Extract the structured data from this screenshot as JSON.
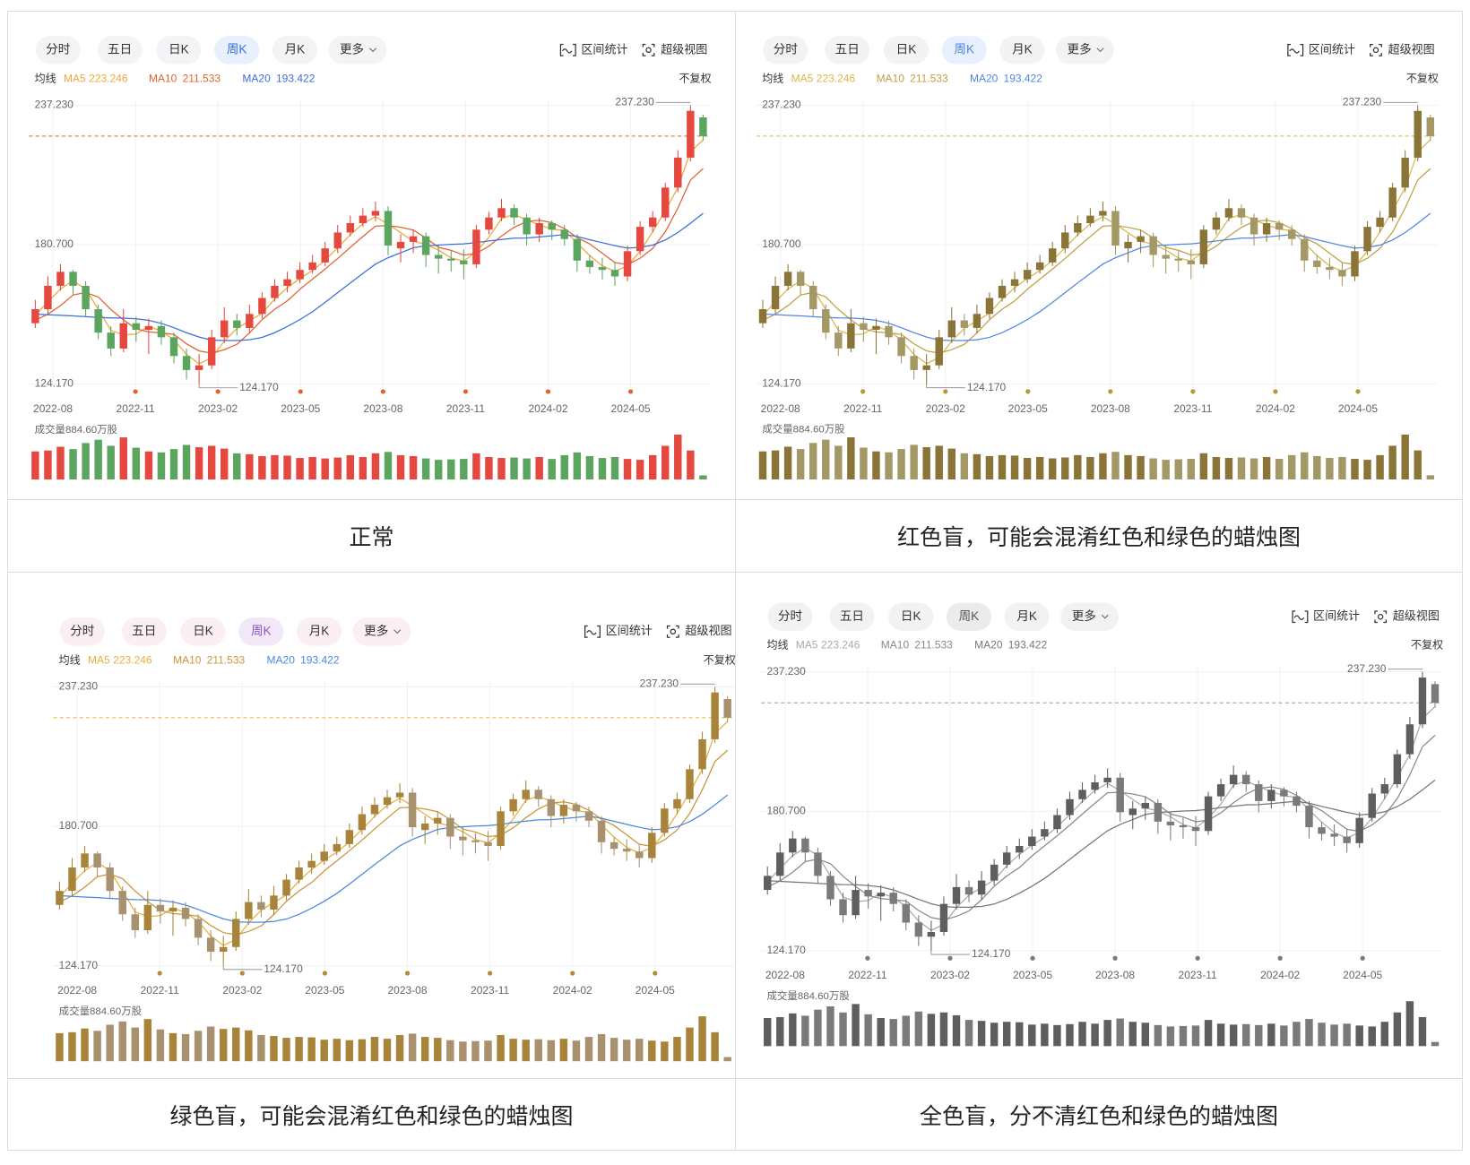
{
  "toolbar": {
    "tabs": [
      "分时",
      "五日",
      "日K",
      "周K",
      "月K",
      "更多"
    ],
    "active_tab": 3,
    "tools": [
      "区间统计",
      "超级视图"
    ]
  },
  "legend_title": "均线",
  "adjust": "不复权",
  "volume_label": "成交量884.60万股",
  "chart_data": {
    "type": "candlestick",
    "xlim": [
      -0.5,
      53.5
    ],
    "xticks": [
      {
        "value": 1.4,
        "label": "2022-08"
      },
      {
        "value": 7.95,
        "label": "2022-11"
      },
      {
        "value": 14.5,
        "label": "2023-02"
      },
      {
        "value": 21.05,
        "label": "2023-05"
      },
      {
        "value": 27.6,
        "label": "2023-08"
      },
      {
        "value": 34.15,
        "label": "2023-11"
      },
      {
        "value": 40.7,
        "label": "2024-02"
      },
      {
        "value": 47.25,
        "label": "2024-05"
      }
    ],
    "ylim": [
      124.17,
      237.23
    ],
    "yticks": [
      {
        "value": 237.23,
        "label": "237.230"
      },
      {
        "value": 180.7,
        "label": "180.700"
      },
      {
        "value": 124.17,
        "label": "124.170"
      }
    ],
    "grid": true,
    "open": [
      148.83,
      154.52,
      164.0,
      169.69,
      164.0,
      154.52,
      145.03,
      138.58,
      148.83,
      146.17,
      147.69,
      143.14,
      135.55,
      129.86,
      131.75,
      143.14,
      149.97,
      146.93,
      152.62,
      159.07,
      164.0,
      166.66,
      170.45,
      173.49,
      179.18,
      185.63,
      189.42,
      192.46,
      194.35,
      179.18,
      181.83,
      184.11,
      176.52,
      175.01,
      174.25,
      172.73,
      186.77,
      191.7,
      195.49,
      191.7,
      184.87,
      189.42,
      186.77,
      182.97,
      174.25,
      171.59,
      170.45,
      167.8,
      178.04,
      187.91,
      191.7,
      203.84,
      215.98,
      232.29
    ],
    "high": [
      158.31,
      167.8,
      172.73,
      170.45,
      165.9,
      156.41,
      147.69,
      154.52,
      151.48,
      150.72,
      149.97,
      145.03,
      138.58,
      136.31,
      146.17,
      155.28,
      152.62,
      156.41,
      161.35,
      166.66,
      169.69,
      173.49,
      176.52,
      181.83,
      188.66,
      192.46,
      195.49,
      198.15,
      196.25,
      184.87,
      186.77,
      185.63,
      180.32,
      178.04,
      178.8,
      188.66,
      193.98,
      199.29,
      197.01,
      193.22,
      191.7,
      190.56,
      188.66,
      184.87,
      176.52,
      175.38,
      173.49,
      180.32,
      190.18,
      194.35,
      205.74,
      219.02,
      237.23,
      233.43
    ],
    "low": [
      146.93,
      152.62,
      162.11,
      160.21,
      151.48,
      142.38,
      135.55,
      137.07,
      141.24,
      136.31,
      140.1,
      132.51,
      126.06,
      124.17,
      130.24,
      140.86,
      143.89,
      144.65,
      150.72,
      157.55,
      161.35,
      165.14,
      168.94,
      171.97,
      177.28,
      184.11,
      187.91,
      190.18,
      176.52,
      173.49,
      177.28,
      171.59,
      168.94,
      169.69,
      166.66,
      171.21,
      184.87,
      190.18,
      188.66,
      180.32,
      181.83,
      182.59,
      180.32,
      169.69,
      168.94,
      166.66,
      164.0,
      165.9,
      176.52,
      185.63,
      190.18,
      201.94,
      214.46,
      222.81
    ],
    "close": [
      154.52,
      164.0,
      169.69,
      164.0,
      154.52,
      145.03,
      138.58,
      148.83,
      146.17,
      147.69,
      143.14,
      135.55,
      129.86,
      131.75,
      143.14,
      149.97,
      146.93,
      152.62,
      159.07,
      164.0,
      166.66,
      170.45,
      173.49,
      179.18,
      185.63,
      189.42,
      192.46,
      194.35,
      180.32,
      181.83,
      184.11,
      176.52,
      175.01,
      174.25,
      172.73,
      186.77,
      191.7,
      195.49,
      191.7,
      184.87,
      189.42,
      186.77,
      182.97,
      174.25,
      171.59,
      170.45,
      167.8,
      178.04,
      187.91,
      191.7,
      203.84,
      215.98,
      234.95,
      224.71
    ],
    "series": [
      {
        "name": "MA5",
        "values": [
          152.0,
          157.5,
          162.7,
          166.0,
          162.7,
          154.5,
          146.0,
          144.1,
          144.5,
          147.6,
          145.7,
          142.1,
          136.2,
          132.4,
          134.9,
          141.6,
          146.7,
          149.8,
          152.9,
          158.6,
          163.2,
          167.0,
          170.2,
          174.4,
          179.4,
          184.7,
          189.2,
          192.1,
          189.0,
          185.5,
          182.1,
          180.8,
          178.5,
          175.3,
          174.0,
          177.9,
          183.7,
          191.3,
          193.0,
          190.7,
          188.7,
          187.0,
          186.4,
          181.3,
          176.3,
          172.1,
          169.9,
          172.1,
          178.0,
          185.9,
          194.5,
          203.8,
          218.3,
          223.246
        ]
      },
      {
        "name": "MA10",
        "values": [
          150.0,
          152.5,
          156.0,
          160.3,
          161.3,
          159.5,
          154.4,
          150.2,
          146.6,
          145.3,
          144.9,
          144.3,
          140.5,
          137.6,
          136.7,
          138.1,
          140.3,
          144.9,
          150.3,
          154.5,
          157.9,
          162.6,
          166.7,
          170.8,
          175.1,
          179.6,
          184.0,
          188.2,
          188.4,
          187.7,
          186.6,
          183.4,
          179.6,
          178.4,
          176.5,
          177.1,
          180.1,
          184.2,
          187.7,
          190.1,
          190.6,
          189.6,
          187.2,
          183.6,
          181.0,
          177.2,
          173.4,
          172.6,
          175.2,
          179.2,
          185.9,
          195.5,
          206.9,
          211.533
        ]
      },
      {
        "name": "MA20",
        "values": [
          152.6,
          152.3,
          152.0,
          151.8,
          151.5,
          151.2,
          151.0,
          150.9,
          150.6,
          150.0,
          148.8,
          147.0,
          145.0,
          143.2,
          142.0,
          141.8,
          141.8,
          142.1,
          143.1,
          145.0,
          147.5,
          150.3,
          153.5,
          157.3,
          161.2,
          165.2,
          169.0,
          172.8,
          175.4,
          177.4,
          179.4,
          180.3,
          180.5,
          180.8,
          181.0,
          181.5,
          182.2,
          182.8,
          183.3,
          183.4,
          183.8,
          184.3,
          184.8,
          184.0,
          182.7,
          181.5,
          180.3,
          179.3,
          179.6,
          180.5,
          182.6,
          185.6,
          189.4,
          193.422
        ]
      }
    ],
    "volume": [
      6000,
      6200,
      7000,
      6500,
      7800,
      8500,
      7200,
      9000,
      6800,
      6000,
      5800,
      6500,
      7400,
      6900,
      7200,
      6600,
      5600,
      5400,
      5000,
      5200,
      5100,
      4600,
      4800,
      4500,
      4700,
      5200,
      4800,
      5600,
      5900,
      5200,
      5000,
      4500,
      4200,
      4300,
      4400,
      5600,
      4800,
      4600,
      4700,
      4500,
      4800,
      4400,
      5200,
      5800,
      5000,
      4600,
      4800,
      4400,
      4200,
      5200,
      7200,
      9600,
      6200,
      884.6
    ],
    "volume_ylim": [
      0,
      10000
    ],
    "annotations": [
      {
        "value": 237.23,
        "label": "237.230"
      },
      {
        "value": 124.17,
        "label": "124.170"
      }
    ]
  },
  "panels": [
    {
      "caption": "正常",
      "up": "#e5483f",
      "down": "#5ba55f",
      "ma_colors": [
        "#f0a63a",
        "#e2632b",
        "#3a6fdc"
      ],
      "last_line": "#e2632b",
      "marker": "#e2632b",
      "tab_bg": "#f3f4f6",
      "tab_active_bg": "#e8f0fe",
      "tab_active_color": "#3a6fdc"
    },
    {
      "caption": "红色盲，可能会混淆红色和绿色的蜡烛图",
      "up": "#8a7438",
      "down": "#a39866",
      "ma_colors": [
        "#d6b84a",
        "#bfa044",
        "#4f86e6"
      ],
      "last_line": "#d4b352",
      "marker": "#b89a3c",
      "tab_bg": "#f4f3f1",
      "tab_active_bg": "#e8f0fe",
      "tab_active_color": "#4f86e6"
    },
    {
      "caption": "绿色盲，可能会混淆红色和绿色的蜡烛图",
      "up": "#a8843a",
      "down": "#a8916e",
      "ma_colors": [
        "#e6b13c",
        "#c9963c",
        "#4a88e0"
      ],
      "last_line": "#e6b13c",
      "marker": "#b48a3a",
      "tab_bg": "#fbeff2",
      "tab_active_bg": "#f3e8f8",
      "tab_active_color": "#8a57c8"
    },
    {
      "caption": "全色盲，分不清红色和绿色的蜡烛图",
      "up": "#5e5e5e",
      "down": "#7a7a7a",
      "ma_colors": [
        "#aaaaaa",
        "#8a8a8a",
        "#777777"
      ],
      "last_line": "#9a9a9a",
      "marker": "#7a7a7a",
      "tab_bg": "#f2f2f2",
      "tab_active_bg": "#ebebeb",
      "tab_active_color": "#555555"
    }
  ]
}
